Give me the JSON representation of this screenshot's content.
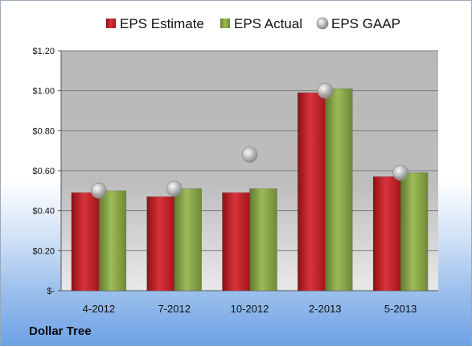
{
  "company": "Dollar Tree",
  "chart_data": {
    "type": "bar",
    "categories": [
      "4-2012",
      "7-2012",
      "10-2012",
      "2-2013",
      "5-2013"
    ],
    "series": [
      {
        "name": "EPS Estimate",
        "kind": "bar",
        "color": "#c8262c",
        "values": [
          0.49,
          0.47,
          0.49,
          0.99,
          0.57
        ]
      },
      {
        "name": "EPS Actual",
        "kind": "bar",
        "color": "#8aa74a",
        "values": [
          0.5,
          0.51,
          0.51,
          1.01,
          0.59
        ]
      },
      {
        "name": "EPS GAAP",
        "kind": "marker",
        "color": "#a9a9a9",
        "values": [
          0.5,
          0.51,
          0.68,
          1.0,
          0.59
        ]
      }
    ],
    "ylim": [
      0,
      1.2
    ],
    "y_ticks": [
      {
        "value": 0,
        "label": "$-"
      },
      {
        "value": 0.2,
        "label": "$0.20"
      },
      {
        "value": 0.4,
        "label": "$0.40"
      },
      {
        "value": 0.6,
        "label": "$0.60"
      },
      {
        "value": 0.8,
        "label": "$0.80"
      },
      {
        "value": 1.0,
        "label": "$1.00"
      },
      {
        "value": 1.2,
        "label": "$1.20"
      }
    ],
    "grid": true,
    "legend": "top"
  }
}
